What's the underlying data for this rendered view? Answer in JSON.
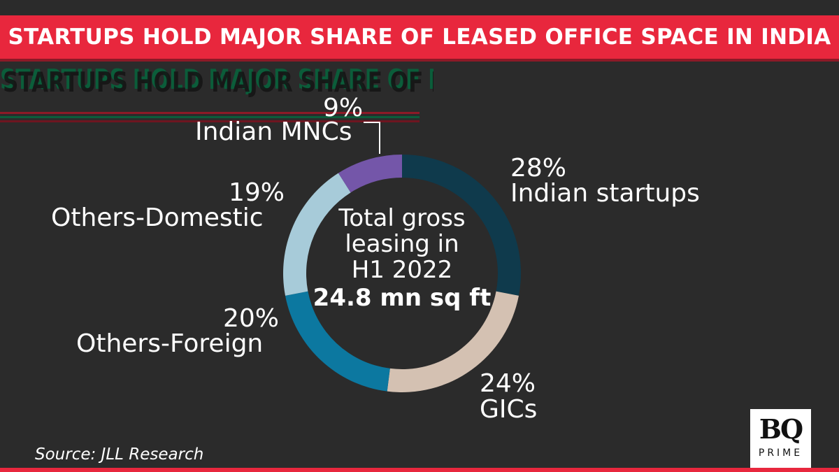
{
  "header": {
    "title": "STARTUPS HOLD MAJOR SHARE OF LEASED OFFICE SPACE IN INDIA"
  },
  "center": {
    "line1": "Total gross",
    "line2": "leasing in",
    "line3": "H1 2022",
    "value": "24.8 mn sq ft"
  },
  "source": "Source: JLL Research",
  "logo": {
    "text": "BQ",
    "sub": "PRIME"
  },
  "chart_data": {
    "type": "pie",
    "variant": "donut",
    "start_angle_deg": 0,
    "categories": [
      "Indian startups",
      "GICs",
      "Others-Foreign",
      "Others-Domestic",
      "Indian MNCs"
    ],
    "values": [
      28,
      24,
      20,
      19,
      9
    ],
    "value_labels": [
      "28%",
      "24%",
      "20%",
      "19%",
      "9%"
    ],
    "colors": [
      "#0f3a4c",
      "#d4c1b2",
      "#0c78a0",
      "#a7cbd9",
      "#7456a9"
    ]
  }
}
